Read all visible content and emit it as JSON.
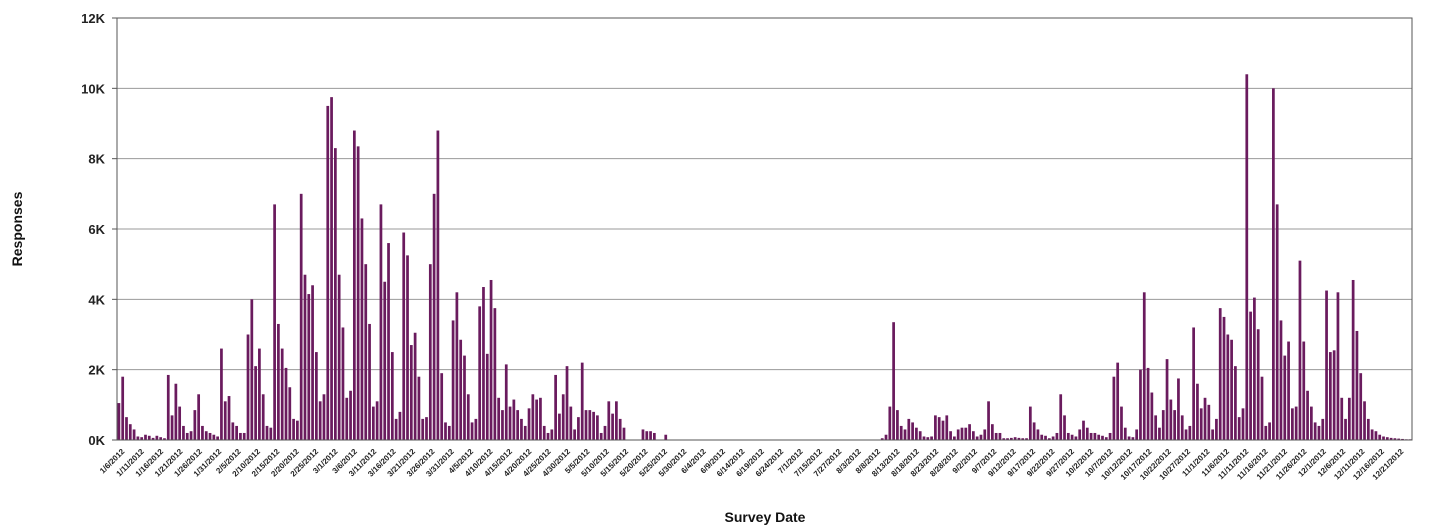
{
  "chart_data": {
    "type": "bar",
    "title": "",
    "xlabel": "Survey Date",
    "ylabel": "Responses",
    "ylim": [
      0,
      12000
    ],
    "y_ticks": [
      "0K",
      "2K",
      "4K",
      "6K",
      "8K",
      "10K",
      "12K"
    ],
    "grid": true,
    "bar_color": "#6a1b5e",
    "x_start": "1/6/2012",
    "x_end": "12/21/2012",
    "x_tick_labels": [
      "1/6/2012",
      "1/11/2012",
      "1/16/2012",
      "1/21/2012",
      "1/26/2012",
      "1/31/2012",
      "2/5/2012",
      "2/10/2012",
      "2/15/2012",
      "2/20/2012",
      "2/25/2012",
      "3/1/2012",
      "3/6/2012",
      "3/11/2012",
      "3/16/2012",
      "3/21/2012",
      "3/26/2012",
      "3/31/2012",
      "4/5/2012",
      "4/10/2012",
      "4/15/2012",
      "4/20/2012",
      "4/25/2012",
      "4/30/2012",
      "5/5/2012",
      "5/10/2012",
      "5/15/2012",
      "5/20/2012",
      "5/25/2012",
      "5/30/2012",
      "6/4/2012",
      "6/9/2012",
      "6/14/2012",
      "6/19/2012",
      "6/24/2012",
      "7/1/2012",
      "7/15/2012",
      "7/27/2012",
      "8/3/2012",
      "8/8/2012",
      "8/13/2012",
      "8/18/2012",
      "8/23/2012",
      "8/28/2012",
      "9/2/2012",
      "9/7/2012",
      "9/12/2012",
      "9/17/2012",
      "9/22/2012",
      "9/27/2012",
      "10/2/2012",
      "10/7/2012",
      "10/12/2012",
      "10/17/2012",
      "10/22/2012",
      "10/27/2012",
      "11/1/2012",
      "11/6/2012",
      "11/11/2012",
      "11/16/2012",
      "11/21/2012",
      "11/26/2012",
      "12/1/2012",
      "12/6/2012",
      "12/11/2012",
      "12/16/2012",
      "12/21/2012"
    ],
    "values": [
      1050,
      1800,
      650,
      450,
      300,
      100,
      80,
      150,
      120,
      60,
      120,
      80,
      50,
      1850,
      700,
      1600,
      950,
      400,
      200,
      250,
      850,
      1300,
      400,
      250,
      200,
      150,
      100,
      2600,
      1100,
      1250,
      500,
      400,
      200,
      200,
      3000,
      4000,
      2100,
      2600,
      1300,
      400,
      350,
      6700,
      3300,
      2600,
      2050,
      1500,
      600,
      550,
      7000,
      4700,
      4150,
      4400,
      2500,
      1100,
      1300,
      9500,
      9750,
      8300,
      4700,
      3200,
      1200,
      1400,
      8800,
      8350,
      6300,
      5000,
      3300,
      950,
      1100,
      6700,
      4500,
      5600,
      2500,
      600,
      800,
      5900,
      5250,
      2700,
      3050,
      1800,
      600,
      650,
      5000,
      7000,
      8800,
      1900,
      500,
      400,
      3400,
      4200,
      2850,
      2400,
      1300,
      500,
      600,
      3800,
      4350,
      2450,
      4550,
      3750,
      1200,
      850,
      2150,
      950,
      1150,
      850,
      600,
      400,
      900,
      1300,
      1150,
      1200,
      400,
      200,
      300,
      1850,
      750,
      1300,
      2100,
      950,
      300,
      650,
      2200,
      850,
      850,
      800,
      700,
      200,
      400,
      1100,
      750,
      1100,
      600,
      350,
      0,
      0,
      0,
      0,
      300,
      250,
      250,
      200,
      0,
      0,
      150,
      0,
      0,
      0,
      0,
      0,
      0,
      0,
      0,
      0,
      0,
      0,
      0,
      0,
      0,
      0,
      0,
      0,
      0,
      0,
      0,
      0,
      0,
      0,
      0,
      0,
      0,
      0,
      0,
      0,
      0,
      0,
      0,
      0,
      0,
      0,
      0,
      0,
      0,
      0,
      0,
      0,
      0,
      0,
      0,
      0,
      0,
      0,
      0,
      0,
      0,
      0,
      0,
      0,
      0,
      0,
      0,
      50,
      150,
      950,
      3350,
      850,
      400,
      300,
      600,
      500,
      350,
      250,
      100,
      80,
      100,
      700,
      650,
      550,
      700,
      250,
      100,
      300,
      350,
      350,
      450,
      250,
      100,
      150,
      300,
      1100,
      450,
      200,
      200,
      50,
      50,
      60,
      80,
      60,
      50,
      50,
      950,
      500,
      300,
      150,
      120,
      50,
      100,
      200,
      1300,
      700,
      200,
      150,
      100,
      300,
      550,
      350,
      200,
      200,
      150,
      120,
      80,
      200,
      1800,
      2200,
      950,
      350,
      100,
      80,
      300,
      2000,
      4200,
      2050,
      1350,
      700,
      350,
      850,
      2300,
      1150,
      850,
      1750,
      700,
      300,
      400,
      3200,
      1600,
      900,
      1200,
      1000,
      300,
      600,
      3750,
      3500,
      3000,
      2850,
      2100,
      650,
      900,
      10400,
      3650,
      4050,
      3150,
      1800,
      400,
      500,
      10000,
      6700,
      3400,
      2400,
      2800,
      900,
      950,
      5100,
      2800,
      1400,
      950,
      500,
      400,
      600,
      4250,
      2500,
      2550,
      4200,
      1200,
      600,
      1200,
      4550,
      3100,
      1900,
      1100,
      600,
      300,
      250,
      150,
      100,
      80,
      60,
      50,
      40,
      30,
      20,
      20
    ]
  }
}
